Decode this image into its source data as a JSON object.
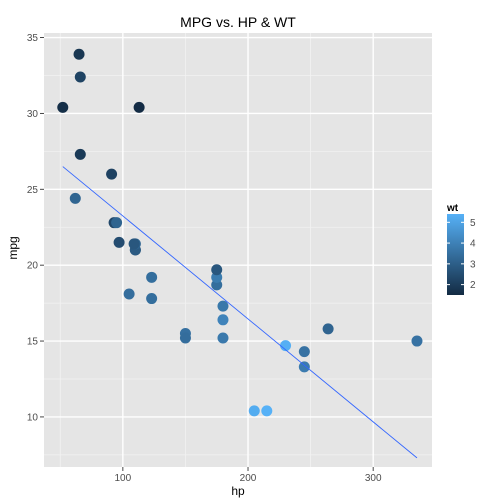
{
  "chart_data": {
    "type": "scatter",
    "title": "MPG vs. HP & WT",
    "xlabel": "hp",
    "ylabel": "mpg",
    "xlim": [
      37,
      347
    ],
    "ylim": [
      6.7,
      35.3
    ],
    "xticks": [
      100,
      200,
      300
    ],
    "yticks": [
      10,
      15,
      20,
      25,
      30,
      35
    ],
    "grid": true,
    "legend": {
      "title": "wt",
      "position": "right",
      "ticks": [
        2,
        3,
        4,
        5
      ],
      "range": [
        1.5,
        5.4
      ]
    },
    "colors": {
      "low": "#132B43",
      "high": "#56B1F7",
      "panel": "#E5E5E5",
      "grid": "#FFFFFF",
      "line": "#3366FF"
    },
    "trend_line": {
      "x": [
        52,
        335
      ],
      "y": [
        26.5,
        7.3
      ]
    },
    "points": [
      {
        "hp": 110,
        "mpg": 21.0,
        "wt": 2.62
      },
      {
        "hp": 110,
        "mpg": 21.0,
        "wt": 2.875
      },
      {
        "hp": 93,
        "mpg": 22.8,
        "wt": 2.32
      },
      {
        "hp": 110,
        "mpg": 21.4,
        "wt": 3.215
      },
      {
        "hp": 175,
        "mpg": 18.7,
        "wt": 3.44
      },
      {
        "hp": 105,
        "mpg": 18.1,
        "wt": 3.46
      },
      {
        "hp": 245,
        "mpg": 14.3,
        "wt": 3.57
      },
      {
        "hp": 62,
        "mpg": 24.4,
        "wt": 3.19
      },
      {
        "hp": 95,
        "mpg": 22.8,
        "wt": 3.15
      },
      {
        "hp": 123,
        "mpg": 19.2,
        "wt": 3.44
      },
      {
        "hp": 123,
        "mpg": 17.8,
        "wt": 3.44
      },
      {
        "hp": 180,
        "mpg": 16.4,
        "wt": 4.07
      },
      {
        "hp": 180,
        "mpg": 17.3,
        "wt": 3.73
      },
      {
        "hp": 180,
        "mpg": 15.2,
        "wt": 3.78
      },
      {
        "hp": 205,
        "mpg": 10.4,
        "wt": 5.25
      },
      {
        "hp": 215,
        "mpg": 10.4,
        "wt": 5.424
      },
      {
        "hp": 230,
        "mpg": 14.7,
        "wt": 5.345
      },
      {
        "hp": 66,
        "mpg": 32.4,
        "wt": 2.2
      },
      {
        "hp": 52,
        "mpg": 30.4,
        "wt": 1.615
      },
      {
        "hp": 65,
        "mpg": 33.9,
        "wt": 1.835
      },
      {
        "hp": 97,
        "mpg": 21.5,
        "wt": 2.465
      },
      {
        "hp": 150,
        "mpg": 15.5,
        "wt": 3.52
      },
      {
        "hp": 150,
        "mpg": 15.2,
        "wt": 3.435
      },
      {
        "hp": 245,
        "mpg": 13.3,
        "wt": 3.84
      },
      {
        "hp": 175,
        "mpg": 19.2,
        "wt": 3.845
      },
      {
        "hp": 66,
        "mpg": 27.3,
        "wt": 1.935
      },
      {
        "hp": 91,
        "mpg": 26.0,
        "wt": 2.14
      },
      {
        "hp": 113,
        "mpg": 30.4,
        "wt": 1.513
      },
      {
        "hp": 264,
        "mpg": 15.8,
        "wt": 3.17
      },
      {
        "hp": 175,
        "mpg": 19.7,
        "wt": 2.77
      },
      {
        "hp": 335,
        "mpg": 15.0,
        "wt": 3.57
      },
      {
        "hp": 109,
        "mpg": 21.4,
        "wt": 2.78
      }
    ]
  }
}
